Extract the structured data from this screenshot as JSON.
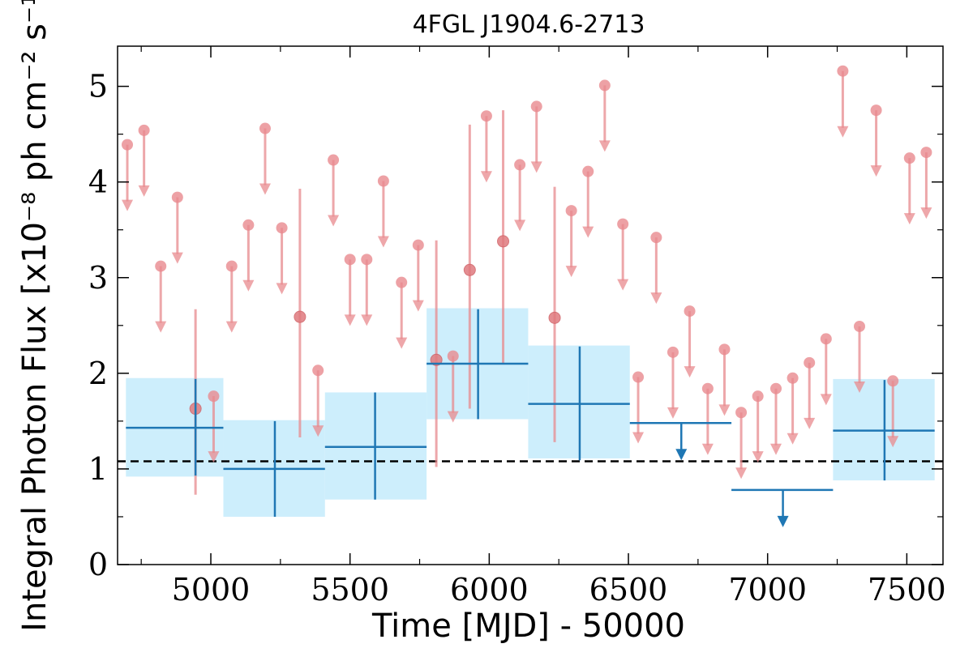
{
  "chart_data": {
    "type": "scatter",
    "title": "4FGL J1904.6-2713",
    "xlabel": "Time [MJD] - 50000",
    "ylabel": "Integral Photon Flux [x10⁻⁸ ph cm⁻² s⁻¹]",
    "xlim": [
      4665,
      7630
    ],
    "ylim": [
      0,
      5.42
    ],
    "xticks": [
      "5000",
      "5500",
      "6000",
      "6500",
      "7000",
      "7500"
    ],
    "yticks": [
      "0",
      "1",
      "2",
      "3",
      "4",
      "5"
    ],
    "reference_line_y": 1.08,
    "colors": {
      "monthly": "#e88a8e",
      "yearly": "#1f77b4",
      "yearly_band": "#cdeefc",
      "reference": "#000000"
    },
    "series": [
      {
        "kind": "monthly_upper_limits",
        "points": [
          {
            "x": 4700,
            "y": 4.39
          },
          {
            "x": 4760,
            "y": 4.54
          },
          {
            "x": 4820,
            "y": 3.12
          },
          {
            "x": 4880,
            "y": 3.84
          },
          {
            "x": 5010,
            "y": 1.76
          },
          {
            "x": 5075,
            "y": 3.12
          },
          {
            "x": 5135,
            "y": 3.55
          },
          {
            "x": 5195,
            "y": 4.56
          },
          {
            "x": 5255,
            "y": 3.52
          },
          {
            "x": 5385,
            "y": 2.03
          },
          {
            "x": 5440,
            "y": 4.23
          },
          {
            "x": 5500,
            "y": 3.19
          },
          {
            "x": 5560,
            "y": 3.19
          },
          {
            "x": 5620,
            "y": 4.01
          },
          {
            "x": 5685,
            "y": 2.95
          },
          {
            "x": 5745,
            "y": 3.34
          },
          {
            "x": 5870,
            "y": 2.18
          },
          {
            "x": 5990,
            "y": 4.69
          },
          {
            "x": 6110,
            "y": 4.18
          },
          {
            "x": 6170,
            "y": 4.79
          },
          {
            "x": 6295,
            "y": 3.7
          },
          {
            "x": 6355,
            "y": 4.11
          },
          {
            "x": 6415,
            "y": 5.01
          },
          {
            "x": 6480,
            "y": 3.56
          },
          {
            "x": 6535,
            "y": 1.96
          },
          {
            "x": 6600,
            "y": 3.42
          },
          {
            "x": 6660,
            "y": 2.22
          },
          {
            "x": 6720,
            "y": 2.65
          },
          {
            "x": 6785,
            "y": 1.84
          },
          {
            "x": 6845,
            "y": 2.25
          },
          {
            "x": 6905,
            "y": 1.59
          },
          {
            "x": 6965,
            "y": 1.76
          },
          {
            "x": 7030,
            "y": 1.84
          },
          {
            "x": 7090,
            "y": 1.95
          },
          {
            "x": 7150,
            "y": 2.11
          },
          {
            "x": 7210,
            "y": 2.36
          },
          {
            "x": 7270,
            "y": 5.16
          },
          {
            "x": 7330,
            "y": 2.49
          },
          {
            "x": 7390,
            "y": 4.75
          },
          {
            "x": 7450,
            "y": 1.92
          },
          {
            "x": 7510,
            "y": 4.25
          },
          {
            "x": 7570,
            "y": 4.31
          }
        ]
      },
      {
        "kind": "monthly_detections",
        "points": [
          {
            "x": 4945,
            "y": 1.63,
            "ylow": 0.73,
            "yhigh": 2.67
          },
          {
            "x": 5320,
            "y": 2.59,
            "ylow": 1.33,
            "yhigh": 3.93
          },
          {
            "x": 5810,
            "y": 2.14,
            "ylow": 1.02,
            "yhigh": 3.39
          },
          {
            "x": 5930,
            "y": 3.08,
            "ylow": 1.63,
            "yhigh": 4.6
          },
          {
            "x": 6050,
            "y": 3.38,
            "ylow": 2.1,
            "yhigh": 4.75
          },
          {
            "x": 6235,
            "y": 2.58,
            "ylow": 1.28,
            "yhigh": 3.95
          }
        ]
      },
      {
        "kind": "yearly_detections",
        "bins": [
          {
            "x": 4945,
            "x0": 4695,
            "x1": 5045,
            "y": 1.43,
            "ylow": 0.93,
            "yhigh": 1.94,
            "band_low": 0.92,
            "band_high": 1.95
          },
          {
            "x": 5230,
            "x0": 5045,
            "x1": 5410,
            "y": 1.0,
            "ylow": 0.5,
            "yhigh": 1.5,
            "band_low": 0.5,
            "band_high": 1.51
          },
          {
            "x": 5590,
            "x0": 5410,
            "x1": 5775,
            "y": 1.23,
            "ylow": 0.68,
            "yhigh": 1.8,
            "band_low": 0.68,
            "band_high": 1.8
          },
          {
            "x": 5960,
            "x0": 5775,
            "x1": 6140,
            "y": 2.1,
            "ylow": 1.52,
            "yhigh": 2.67,
            "band_low": 1.52,
            "band_high": 2.68
          },
          {
            "x": 6325,
            "x0": 6140,
            "x1": 6505,
            "y": 1.68,
            "ylow": 1.09,
            "yhigh": 2.28,
            "band_low": 1.11,
            "band_high": 2.29
          },
          {
            "x": 7420,
            "x0": 7235,
            "x1": 7600,
            "y": 1.4,
            "ylow": 0.88,
            "yhigh": 1.93,
            "band_low": 0.88,
            "band_high": 1.94
          }
        ]
      },
      {
        "kind": "yearly_upper_limits",
        "bins": [
          {
            "x": 6690,
            "x0": 6505,
            "x1": 6870,
            "y": 1.48
          },
          {
            "x": 7055,
            "x0": 6870,
            "x1": 7235,
            "y": 0.78
          }
        ]
      }
    ]
  }
}
